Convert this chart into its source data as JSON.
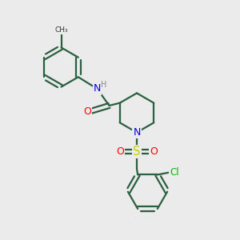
{
  "bg_color": "#ebebeb",
  "atom_colors": {
    "N": "#0000ee",
    "O": "#ff0000",
    "S": "#cccc00",
    "Cl": "#00bb00",
    "H": "#888888"
  },
  "bond_color": "#2a6040",
  "line_width": 1.6,
  "font_size": 8.5,
  "figsize": [
    3.0,
    3.0
  ],
  "dpi": 100,
  "xlim": [
    0,
    10
  ],
  "ylim": [
    0,
    10
  ]
}
